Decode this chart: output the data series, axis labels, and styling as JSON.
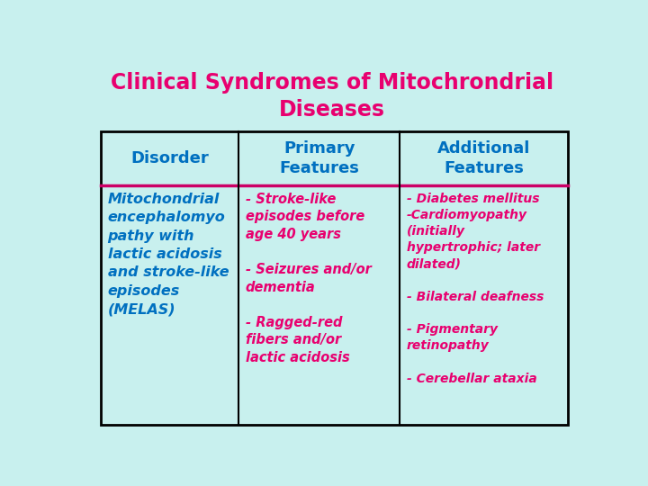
{
  "title_line1": "Clinical Syndromes of Mitochrondrial",
  "title_line2": "Diseases",
  "title_color": "#E8006F",
  "background_color": "#C8F0EE",
  "table_bg": "#C8F0EE",
  "header_text_color": "#0070C0",
  "border_color": "#000000",
  "divider_color": "#CC0066",
  "col1_header": "Disorder",
  "col2_header": "Primary\nFeatures",
  "col3_header": "Additional\nFeatures",
  "col1_content": "Mitochondrial\nencephalomyo\npathy with\nlactic acidosis\nand stroke-like\nepisodes\n(MELAS)",
  "col2_content": "- Stroke-like\nepisodes before\nage 40 years\n\n- Seizures and/or\ndementia\n\n- Ragged-red\nfibers and/or\nlactic acidosis",
  "col3_content": "- Diabetes mellitus\n-Cardiomyopathy\n(initially\nhypertrophic; later\ndilated)\n\n- Bilateral deafness\n\n- Pigmentary\nretinopathy\n\n- Cerebellar ataxia",
  "col1_content_color": "#0070C0",
  "col2_content_color": "#E8006F",
  "col3_content_color": "#E8006F",
  "figsize": [
    7.2,
    5.4
  ],
  "dpi": 100
}
